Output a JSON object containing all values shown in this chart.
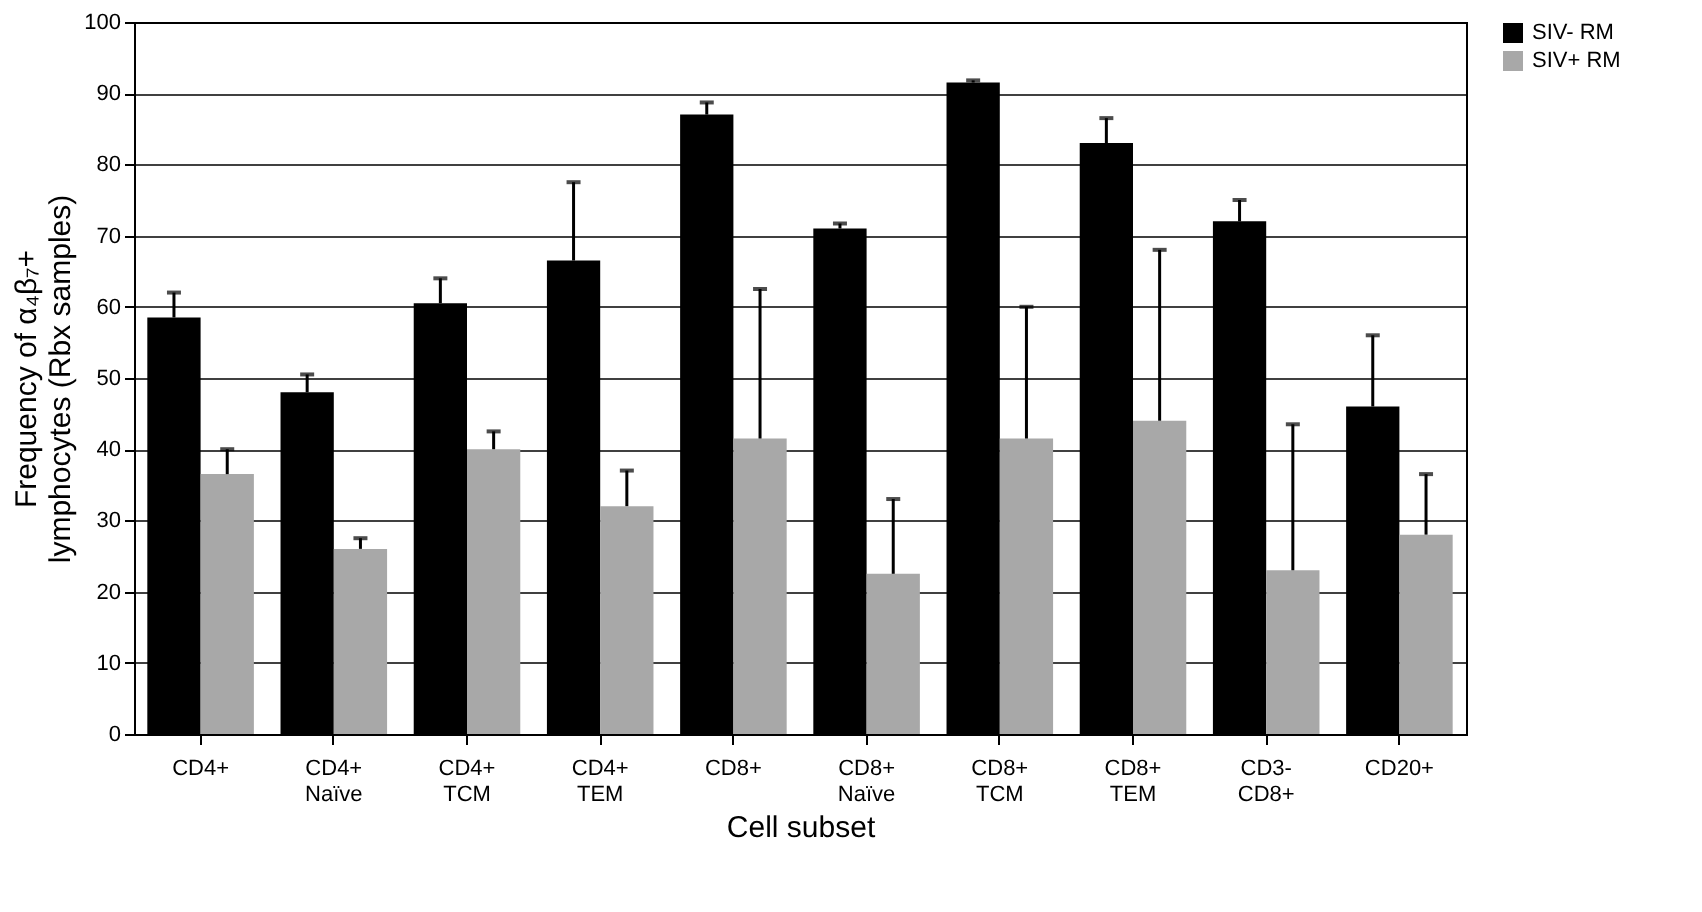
{
  "chart_data": {
    "type": "bar",
    "xlabel": "Cell subset",
    "ylabel": "Frequency of α₄β₇+\nlymphocytes (Rbx samples)",
    "categories": [
      "CD4+",
      "CD4+\nNaïve",
      "CD4+\nTCM",
      "CD4+\nTEM",
      "CD8+",
      "CD8+\nNaïve",
      "CD8+\nTCM",
      "CD8+\nTEM",
      "CD3-\nCD8+",
      "CD20+"
    ],
    "series": [
      {
        "name": "SIV- RM",
        "color": "#000000",
        "values": [
          58.5,
          48,
          60.5,
          66.5,
          87,
          71,
          91.5,
          83,
          72,
          46
        ],
        "errors": [
          [
            58.5,
            62
          ],
          [
            48,
            50.5
          ],
          [
            60.5,
            64
          ],
          [
            66.5,
            77.5
          ],
          [
            87,
            88.7
          ],
          [
            71,
            71.7
          ],
          [
            91.5,
            91.8
          ],
          [
            83,
            86.5
          ],
          [
            72,
            75
          ],
          [
            46,
            56
          ]
        ]
      },
      {
        "name": "SIV+ RM",
        "color": "#a8a8a8",
        "values": [
          36.5,
          26,
          40,
          32,
          41.5,
          22.5,
          41.5,
          44,
          23,
          28
        ],
        "errors": [
          [
            36.5,
            40
          ],
          [
            26,
            27.5
          ],
          [
            40,
            42.5
          ],
          [
            32,
            37
          ],
          [
            41.5,
            62.5
          ],
          [
            22.5,
            33
          ],
          [
            41.5,
            60
          ],
          [
            44,
            68
          ],
          [
            23,
            43.5
          ],
          [
            28,
            36.5
          ]
        ]
      }
    ],
    "ylim": [
      0,
      100
    ],
    "yticks": [
      0,
      10,
      20,
      30,
      40,
      50,
      60,
      70,
      80,
      90,
      100
    ],
    "grid": "y",
    "legend": "right"
  }
}
